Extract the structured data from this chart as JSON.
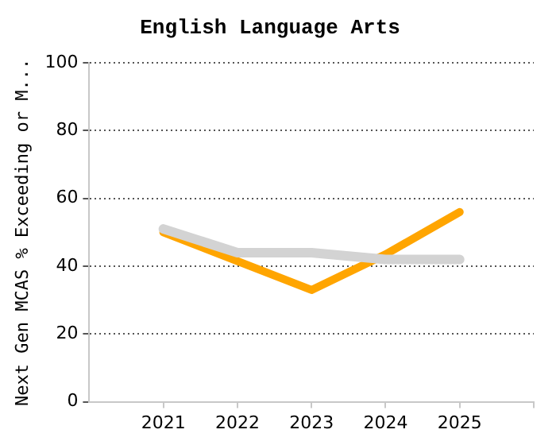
{
  "chart_data": {
    "type": "line",
    "title": "English Language Arts",
    "ylabel": "Next Gen MCAS % Exceeding or M...",
    "x": [
      2021,
      2022,
      2023,
      2024,
      2025
    ],
    "xlim": [
      2020,
      2026
    ],
    "xticks": [
      2021,
      2022,
      2023,
      2024,
      2025,
      {
        "value": 2026,
        "label": null
      }
    ],
    "ylim": [
      0,
      100
    ],
    "yticks": [
      0,
      20,
      40,
      60,
      80,
      100
    ],
    "series": [
      {
        "color": "#d3d3d3",
        "values": [
          51,
          44,
          44,
          42,
          42
        ]
      },
      {
        "color": "#ffa500",
        "values": [
          50,
          41.5,
          33,
          43.5,
          56
        ]
      }
    ],
    "grid": "y",
    "legend": false,
    "marker": "none",
    "line_style": "solid"
  }
}
